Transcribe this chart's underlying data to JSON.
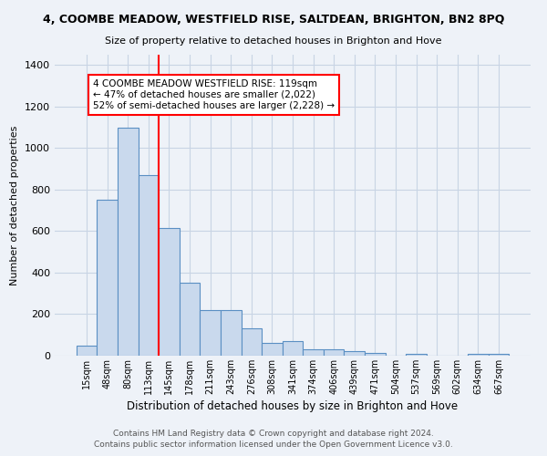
{
  "title1": "4, COOMBE MEADOW, WESTFIELD RISE, SALTDEAN, BRIGHTON, BN2 8PQ",
  "title2": "Size of property relative to detached houses in Brighton and Hove",
  "xlabel": "Distribution of detached houses by size in Brighton and Hove",
  "ylabel": "Number of detached properties",
  "footnote1": "Contains HM Land Registry data © Crown copyright and database right 2024.",
  "footnote2": "Contains public sector information licensed under the Open Government Licence v3.0.",
  "bin_labels": [
    "15sqm",
    "48sqm",
    "80sqm",
    "113sqm",
    "145sqm",
    "178sqm",
    "211sqm",
    "243sqm",
    "276sqm",
    "308sqm",
    "341sqm",
    "374sqm",
    "406sqm",
    "439sqm",
    "471sqm",
    "504sqm",
    "537sqm",
    "569sqm",
    "602sqm",
    "634sqm",
    "667sqm"
  ],
  "bar_values": [
    47,
    750,
    1100,
    870,
    615,
    350,
    220,
    220,
    130,
    60,
    70,
    30,
    30,
    20,
    12,
    0,
    10,
    0,
    0,
    10,
    10
  ],
  "bar_color": "#c9d9ed",
  "bar_edge_color": "#5a8fc3",
  "ylim": [
    0,
    1450
  ],
  "yticks": [
    0,
    200,
    400,
    600,
    800,
    1000,
    1200,
    1400
  ],
  "red_line_bin_index": 3,
  "annotation_text": "4 COOMBE MEADOW WESTFIELD RISE: 119sqm\n← 47% of detached houses are smaller (2,022)\n52% of semi-detached houses are larger (2,228) →",
  "annotation_box_color": "white",
  "annotation_box_edge": "red",
  "bg_color": "#eef2f8",
  "grid_color": "#c8d4e4"
}
